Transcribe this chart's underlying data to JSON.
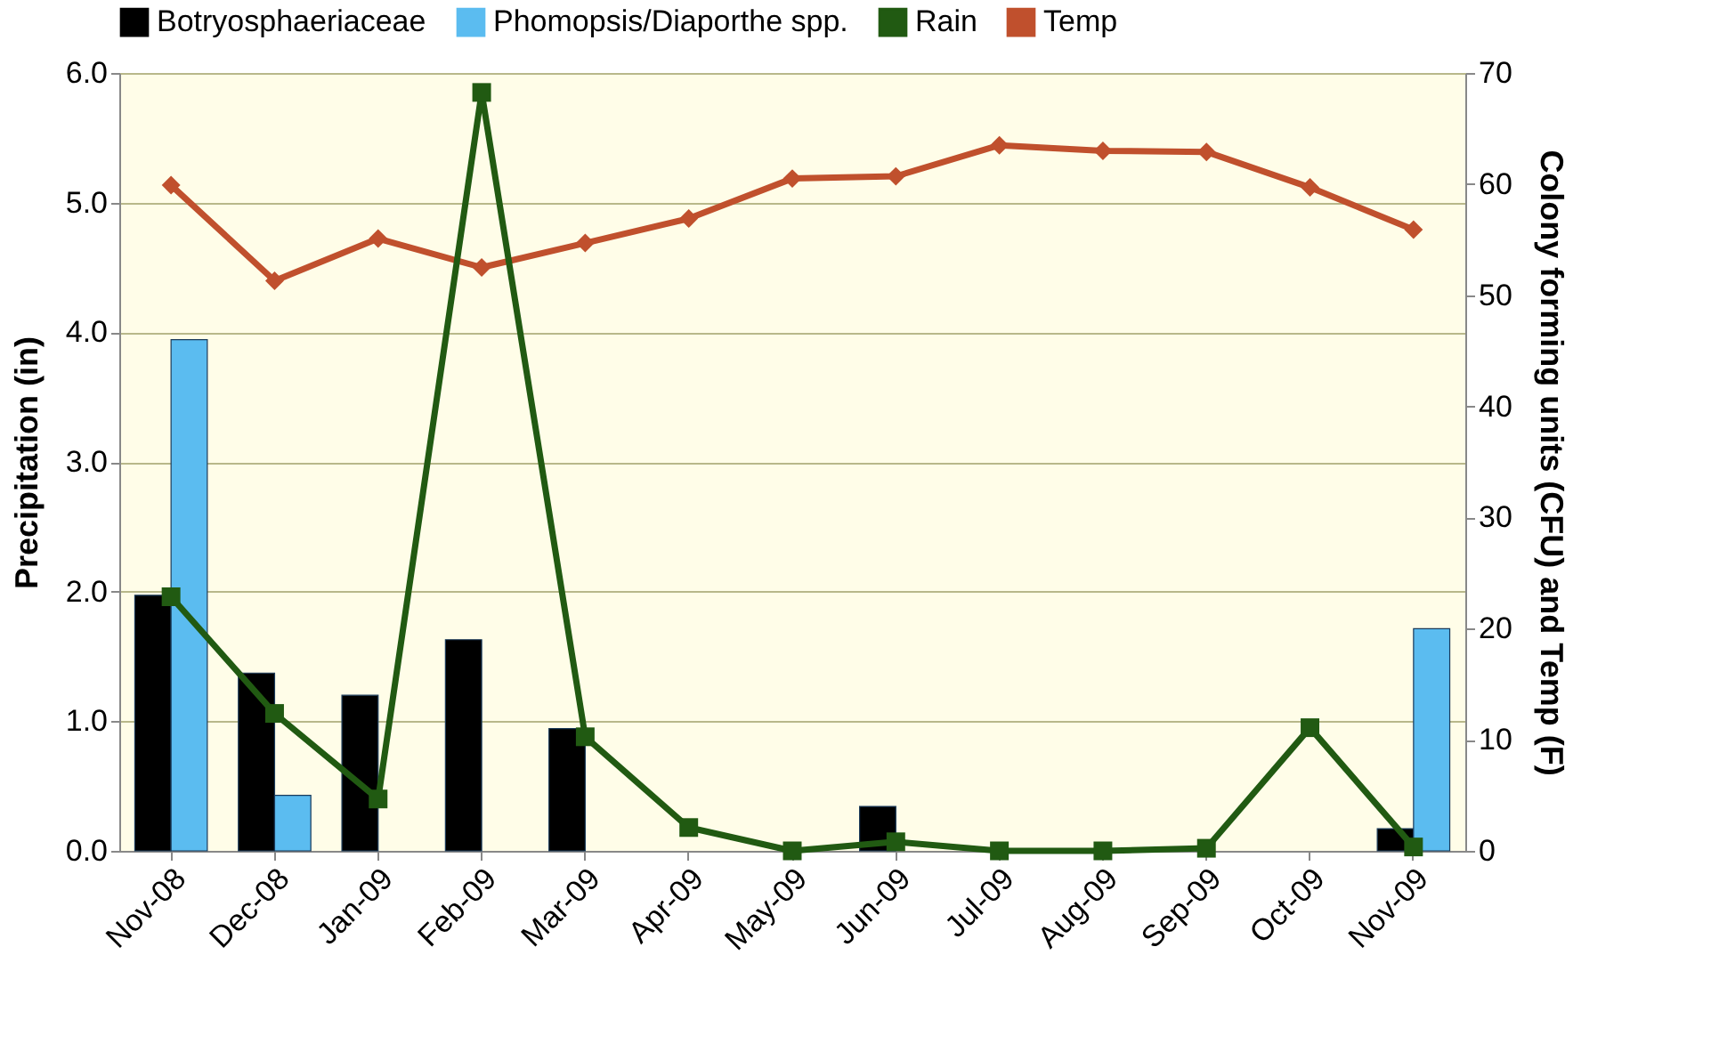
{
  "chart_data": {
    "type": "bar",
    "categories": [
      "Nov-08",
      "Dec-08",
      "Jan-09",
      "Feb-09",
      "Mar-09",
      "Apr-09",
      "May-09",
      "Jun-09",
      "Jul-09",
      "Aug-09",
      "Sep-09",
      "Oct-09",
      "Nov-09"
    ],
    "series": [
      {
        "name": "Botryosphaeriaceae",
        "axis": "y2",
        "color": "#000000",
        "values": [
          23,
          16,
          14,
          19,
          11,
          null,
          null,
          4,
          null,
          null,
          null,
          null,
          2
        ]
      },
      {
        "name": "Phomopsis/Diaporthe spp.",
        "axis": "y2",
        "color": "#5bbcf0",
        "values": [
          46,
          5,
          null,
          null,
          null,
          null,
          null,
          null,
          null,
          null,
          null,
          null,
          20
        ]
      },
      {
        "name": "Rain",
        "type": "line",
        "marker": "square",
        "color": "#215a12",
        "values": [
          1.96,
          1.06,
          0.4,
          5.85,
          0.88,
          0.18,
          0.0,
          0.07,
          0.0,
          0.0,
          0.02,
          0.95,
          0.03
        ]
      },
      {
        "name": "Temp",
        "type": "line",
        "axis": "y2",
        "marker": "diamond",
        "color": "#c0502d",
        "values": [
          59.9,
          51.3,
          55.1,
          52.5,
          54.7,
          56.9,
          60.5,
          60.7,
          63.5,
          63.0,
          62.9,
          59.7,
          55.9
        ]
      }
    ],
    "ylabel": "Precipitation (in)",
    "y2label": "Colony forming units (CFU) and Temp (F)",
    "ylim": [
      0,
      6
    ],
    "yticks": [
      {
        "value": 0,
        "label": "0.0"
      },
      {
        "value": 1,
        "label": "1.0"
      },
      {
        "value": 2,
        "label": "2.0"
      },
      {
        "value": 3,
        "label": "3.0"
      },
      {
        "value": 4,
        "label": "4.0"
      },
      {
        "value": 5,
        "label": "5.0"
      },
      {
        "value": 6,
        "label": "6.0"
      }
    ],
    "y2lim": [
      0,
      70
    ],
    "y2ticks": [
      0,
      10,
      20,
      30,
      40,
      50,
      60,
      70
    ],
    "grid": "y",
    "legend": "top"
  }
}
